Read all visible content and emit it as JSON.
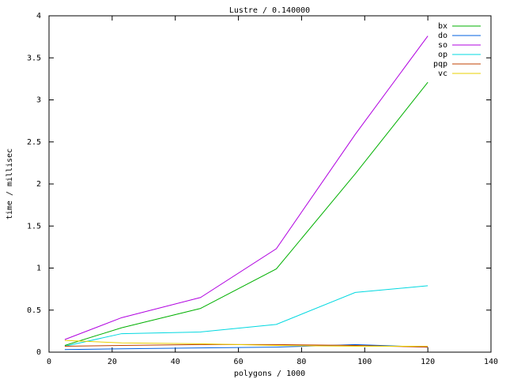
{
  "chart_data": {
    "type": "line",
    "title": "Lustre / 0.140000",
    "x_label": "polygons / 1000",
    "y_label": "time / millisec",
    "x": [
      5,
      23,
      48,
      72,
      97,
      120
    ],
    "series": [
      {
        "name": "bx",
        "color": "#00b000",
        "values": [
          0.08,
          0.29,
          0.52,
          0.99,
          2.12,
          3.21
        ]
      },
      {
        "name": "do",
        "color": "#0060e0",
        "values": [
          0.03,
          0.04,
          0.05,
          0.06,
          0.09,
          0.06
        ]
      },
      {
        "name": "so",
        "color": "#b000e0",
        "values": [
          0.15,
          0.41,
          0.65,
          1.23,
          2.59,
          3.76
        ]
      },
      {
        "name": "op",
        "color": "#00d8e0",
        "values": [
          0.07,
          0.22,
          0.24,
          0.33,
          0.71,
          0.79
        ]
      },
      {
        "name": "pqp",
        "color": "#c04000",
        "values": [
          0.07,
          0.08,
          0.09,
          0.09,
          0.08,
          0.06
        ]
      },
      {
        "name": "vc",
        "color": "#e8d000",
        "values": [
          0.14,
          0.11,
          0.1,
          0.08,
          0.07,
          0.07
        ]
      }
    ],
    "xlim": [
      0,
      140
    ],
    "xticks": [
      0,
      20,
      40,
      60,
      80,
      100,
      120,
      140
    ],
    "ylim": [
      0,
      4
    ],
    "yticks": [
      0,
      0.5,
      1,
      1.5,
      2,
      2.5,
      3,
      3.5,
      4
    ],
    "grid": false,
    "legend": "top-right"
  }
}
